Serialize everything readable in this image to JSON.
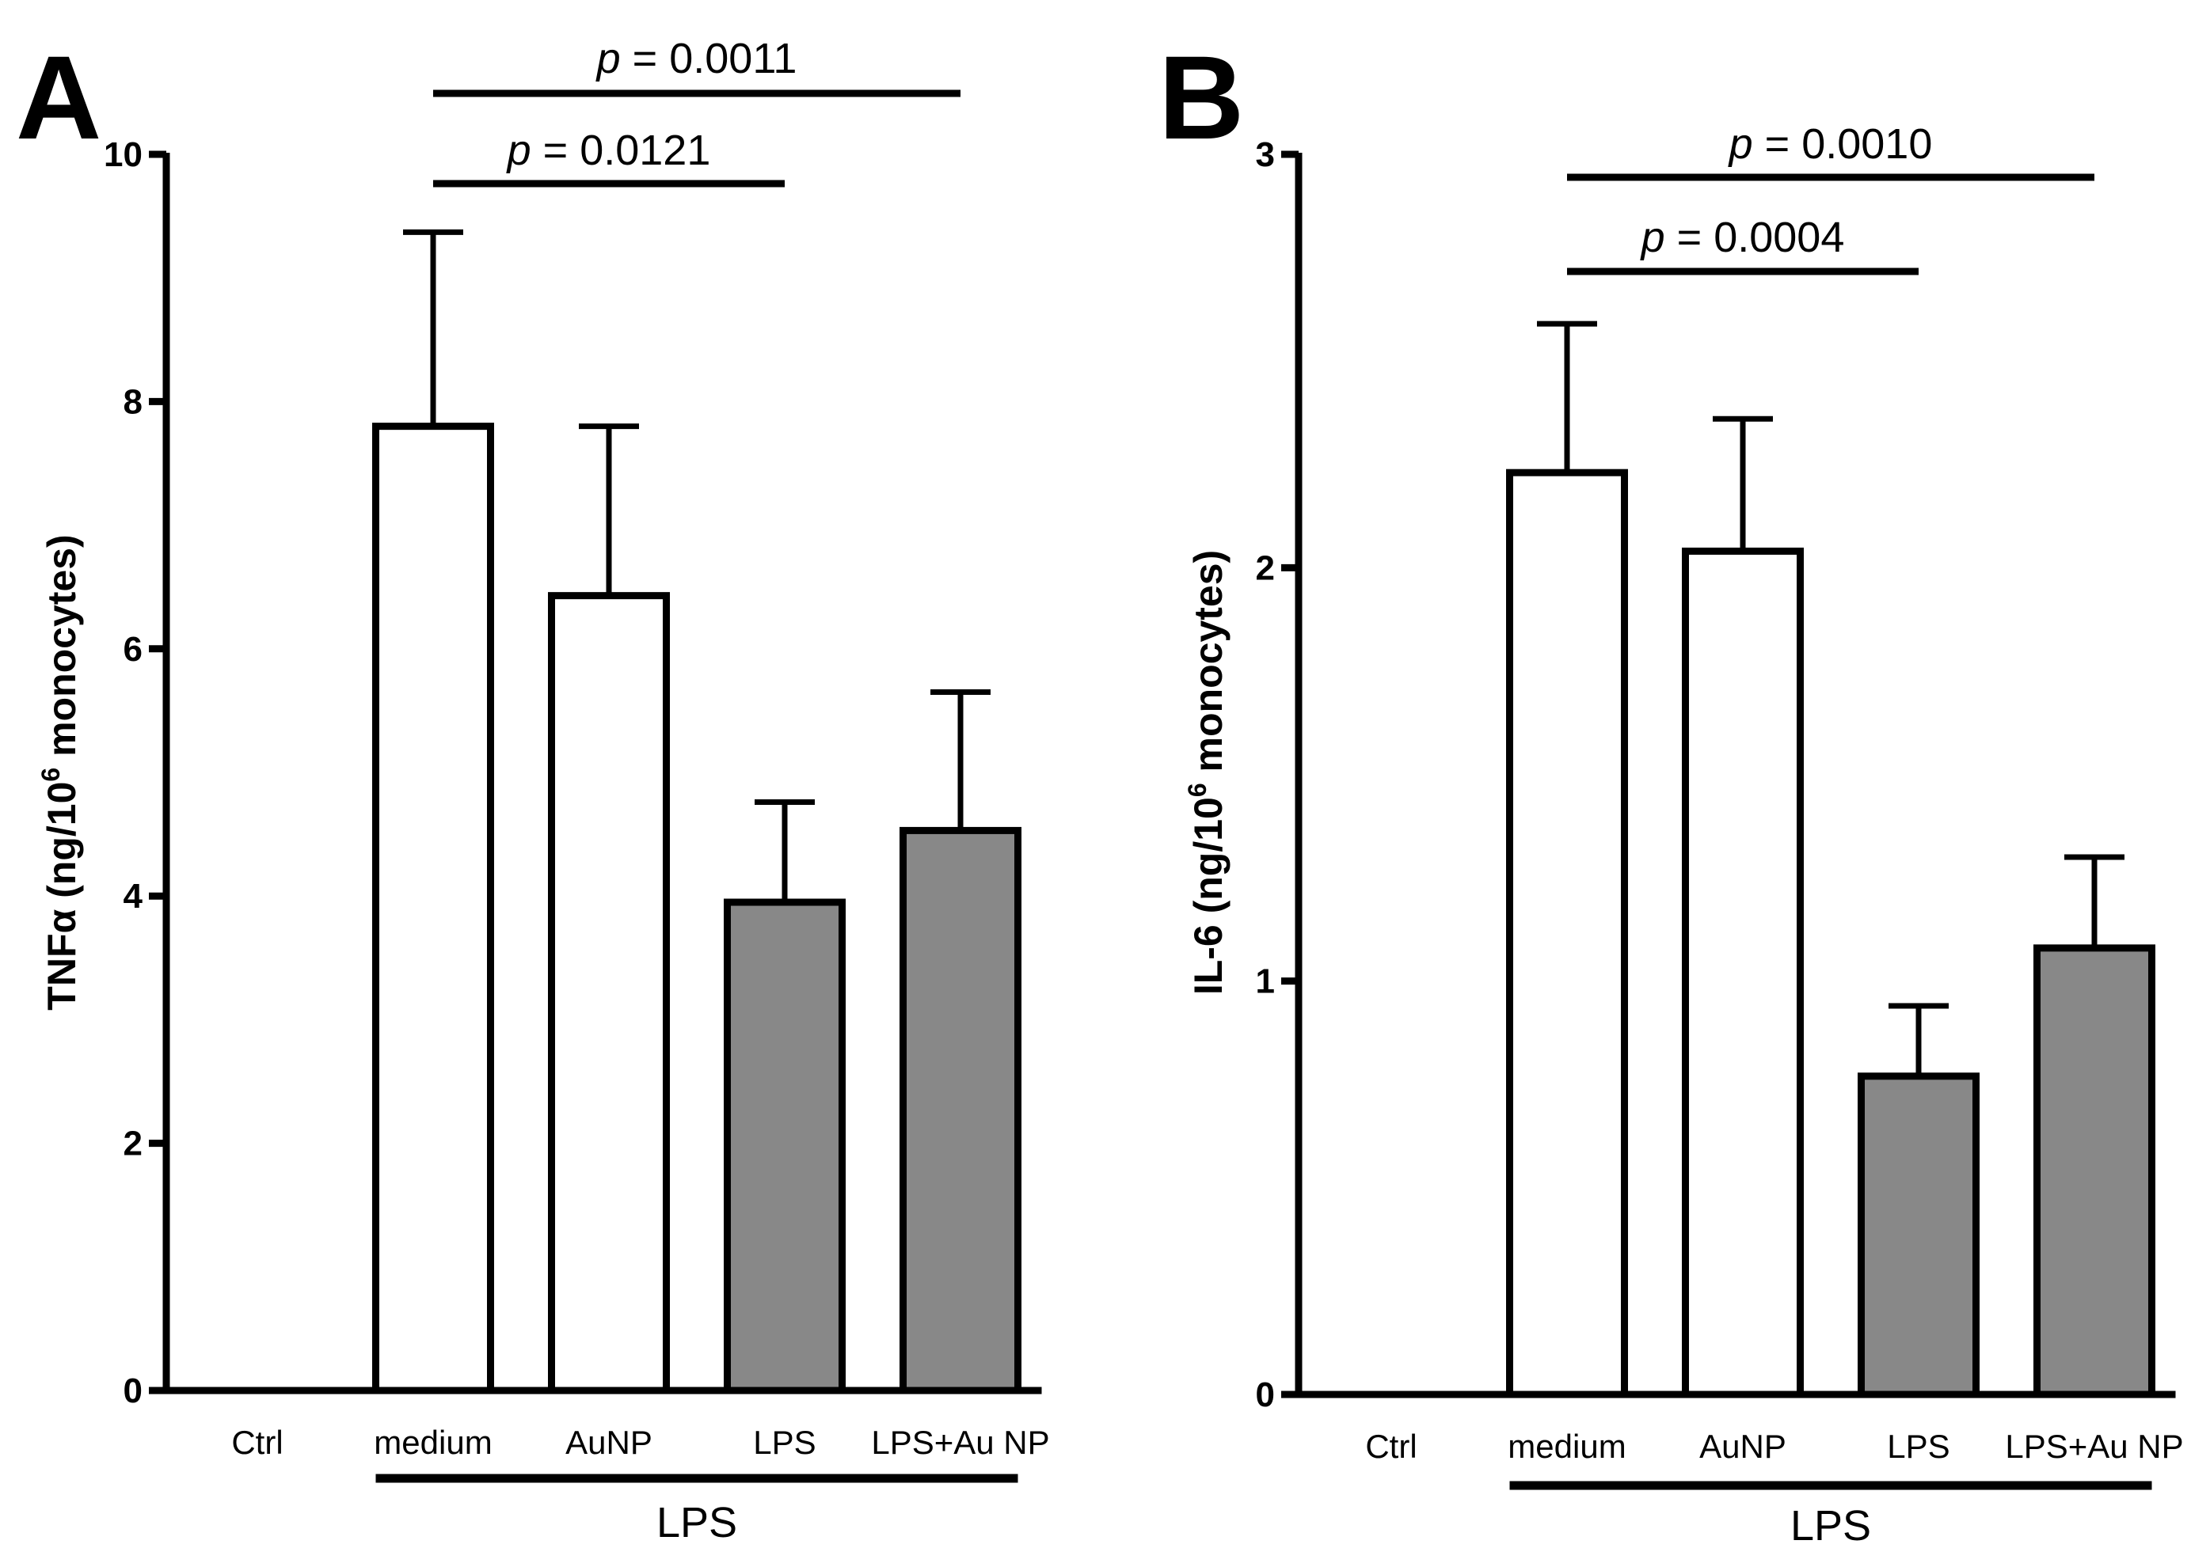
{
  "chart_data": [
    {
      "type": "bar",
      "panel": "A",
      "ylabel": {
        "pre": "TNFα (ng/10",
        "sup": "6",
        "post": " monocytes)"
      },
      "ylim": [
        0,
        10
      ],
      "yticks": [
        "0",
        "2",
        "4",
        "6",
        "8",
        "10"
      ],
      "categories": [
        "Ctrl",
        "medium",
        "AuNP",
        "LPS",
        "LPS+Au NP"
      ],
      "values": [
        0,
        7.8,
        6.43,
        3.95,
        4.53
      ],
      "errors": [
        0,
        1.57,
        1.37,
        0.81,
        1.12
      ],
      "fills": [
        "#ffffff",
        "#ffffff",
        "#ffffff",
        "#888888",
        "#888888"
      ],
      "group_label": "LPS",
      "group_span": [
        "medium",
        "LPS+Au NP"
      ],
      "comparisons": [
        {
          "p_label": "p",
          "p_value": " = 0.0011",
          "from": "medium",
          "to": "LPS+Au NP"
        },
        {
          "p_label": "p",
          "p_value": " = 0.0121",
          "from": "medium",
          "to": "LPS"
        }
      ]
    },
    {
      "type": "bar",
      "panel": "B",
      "ylabel": {
        "pre": "IL-6 (ng/10",
        "sup": "6",
        "post": " monocytes)"
      },
      "ylim": [
        0,
        3
      ],
      "yticks": [
        "0",
        "1",
        "2",
        "3"
      ],
      "categories": [
        "Ctrl",
        "medium",
        "AuNP",
        "LPS",
        "LPS+Au NP"
      ],
      "values": [
        0,
        2.23,
        2.04,
        0.77,
        1.08
      ],
      "errors": [
        0,
        0.36,
        0.32,
        0.17,
        0.22
      ],
      "fills": [
        "#ffffff",
        "#ffffff",
        "#ffffff",
        "#888888",
        "#888888"
      ],
      "group_label": "LPS",
      "group_span": [
        "medium",
        "LPS+Au NP"
      ],
      "comparisons": [
        {
          "p_label": "p",
          "p_value": " = 0.0010",
          "from": "medium",
          "to": "LPS+Au NP"
        },
        {
          "p_label": "p",
          "p_value": " = 0.0004",
          "from": "medium",
          "to": "LPS"
        }
      ]
    }
  ]
}
